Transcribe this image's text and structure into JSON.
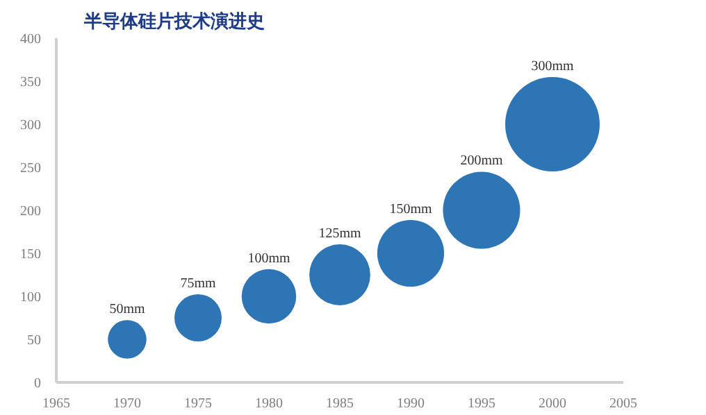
{
  "chart_data": {
    "type": "bubble",
    "title": "半导体硅片技术演进史",
    "x": [
      1970,
      1975,
      1980,
      1985,
      1990,
      1995,
      2000
    ],
    "series": [
      {
        "color": "#2e75b6",
        "values": [
          50,
          75,
          100,
          125,
          150,
          200,
          300
        ],
        "sizes": [
          0.1667,
          0.25,
          0.3333,
          0.4167,
          0.5,
          0.6667,
          1
        ],
        "value_labels": [
          "50mm",
          "75mm",
          "100mm",
          "125mm",
          "150mm",
          "200mm",
          "300mm"
        ]
      }
    ],
    "xlim": [
      1965,
      2005
    ],
    "xticks": [
      1965,
      1970,
      1975,
      1980,
      1985,
      1990,
      1995,
      2000,
      2005
    ],
    "ylim": [
      0,
      400
    ],
    "yticks": [
      0,
      50,
      100,
      150,
      200,
      250,
      300,
      350,
      400
    ],
    "grid": false
  }
}
